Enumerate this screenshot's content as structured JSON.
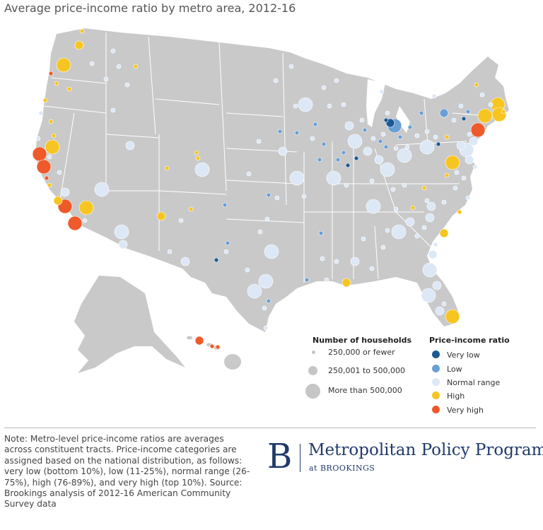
{
  "title": "Average price-income ratio by metro area, 2012-16",
  "legend_households": {
    "title": "Number of households",
    "items": [
      "250,000 or fewer",
      "250,001 to 500,000",
      "More than 500,000"
    ]
  },
  "legend_ratio": {
    "title": "Price-income ratio",
    "items": [
      {
        "label": "Very low",
        "color": "#1a5a94"
      },
      {
        "label": "Low",
        "color": "#6a9fd6"
      },
      {
        "label": "Normal range",
        "color": "#dde8f6"
      },
      {
        "label": "High",
        "color": "#f7c522"
      },
      {
        "label": "Very high",
        "color": "#ee5a2a"
      }
    ]
  },
  "colors": {
    "land": "#c9c9c9",
    "state_lines": "#ffffff",
    "households_dot": "#c6c6c6"
  },
  "note": "Note: Metro-level price-income ratios are averages across constituent tracts. Price-income categories are assigned based on the national distribution, as follows: very low (bottom 10%), low (11-25%), normal range (26-75%), high (76-89%), and very high (top 10%). Source: Brookings analysis of 2012-16 American Community Survey data",
  "brand": {
    "letter": "B",
    "name": "Metropolitan Policy Program",
    "sub": "at BROOKINGS"
  }
}
